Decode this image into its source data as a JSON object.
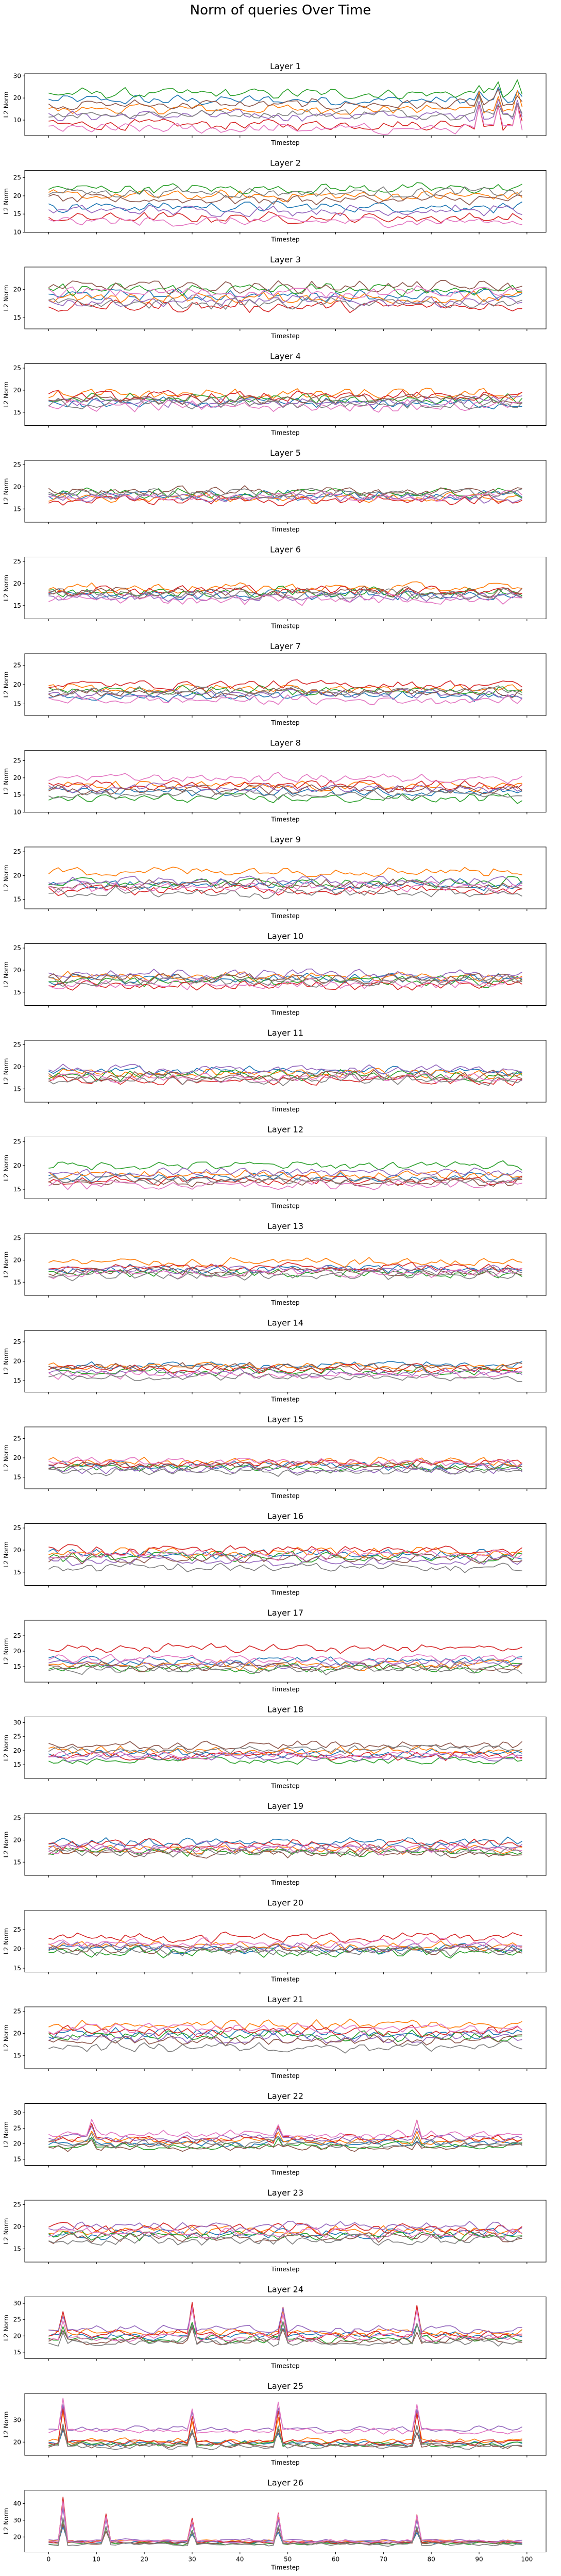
{
  "figure": {
    "title": "Norm of queries Over Time"
  },
  "chart_data": {
    "type": "line",
    "x": {
      "start": 0,
      "end": 99,
      "step": 1
    },
    "xlabel": "Timestep",
    "ylabel": "L2 Norm",
    "xlim": [
      -5,
      104
    ],
    "xticks": [
      0,
      10,
      20,
      30,
      40,
      50,
      60,
      70,
      80,
      90,
      100
    ],
    "series_per_panel": 8,
    "series_colors": [
      "#1f77b4",
      "#ff7f0e",
      "#2ca02c",
      "#d62728",
      "#9467bd",
      "#8c564b",
      "#e377c2",
      "#7f7f7f"
    ],
    "panels": [
      {
        "title": "Layer 1",
        "ylim": [
          3,
          31
        ],
        "yticks": [
          10,
          20,
          30
        ],
        "centers": [
          19,
          15,
          22,
          8,
          12,
          17,
          6,
          13
        ],
        "amp": 3.0,
        "spikes": [
          [
            90,
            10
          ],
          [
            94,
            10
          ],
          [
            98,
            10
          ]
        ]
      },
      {
        "title": "Layer 2",
        "ylim": [
          10,
          27
        ],
        "yticks": [
          10,
          15,
          20,
          25
        ],
        "centers": [
          17,
          20,
          22,
          14,
          16,
          19,
          13,
          21
        ],
        "amp": 1.8,
        "spikes": []
      },
      {
        "title": "Layer 3",
        "ylim": [
          13,
          24
        ],
        "yticks": [
          15,
          20
        ],
        "centers": [
          19,
          18.5,
          20,
          17,
          18,
          20.5,
          19.5,
          17.5
        ],
        "amp": 1.3,
        "spikes": []
      },
      {
        "title": "Layer 4",
        "ylim": [
          12,
          26
        ],
        "yticks": [
          15,
          20,
          25
        ],
        "centers": [
          17,
          19,
          18,
          18.5,
          17.5,
          18,
          16.5,
          17
        ],
        "amp": 1.6,
        "spikes": []
      },
      {
        "title": "Layer 5",
        "ylim": [
          12,
          26
        ],
        "yticks": [
          15,
          20,
          25
        ],
        "centers": [
          18,
          17.5,
          18.5,
          17,
          17.5,
          19,
          18,
          18.5
        ],
        "amp": 1.4,
        "spikes": []
      },
      {
        "title": "Layer 6",
        "ylim": [
          12,
          26
        ],
        "yticks": [
          15,
          20,
          25
        ],
        "centers": [
          17.5,
          19,
          18,
          18.5,
          17,
          18,
          16.5,
          17.5
        ],
        "amp": 1.5,
        "spikes": []
      },
      {
        "title": "Layer 7",
        "ylim": [
          12,
          28
        ],
        "yticks": [
          15,
          20,
          25
        ],
        "centers": [
          17,
          19,
          18.5,
          20,
          17.5,
          18,
          16,
          18.5
        ],
        "amp": 1.5,
        "spikes": []
      },
      {
        "title": "Layer 8",
        "ylim": [
          10,
          28
        ],
        "yticks": [
          10,
          15,
          20,
          25
        ],
        "centers": [
          16,
          17.5,
          14,
          18,
          17,
          16.5,
          20,
          15
        ],
        "amp": 1.7,
        "spikes": []
      },
      {
        "title": "Layer 9",
        "ylim": [
          13,
          26
        ],
        "yticks": [
          15,
          20,
          25
        ],
        "centers": [
          18,
          21,
          18.5,
          17,
          19,
          18,
          17.5,
          16.5
        ],
        "amp": 1.4,
        "spikes": []
      },
      {
        "title": "Layer 10",
        "ylim": [
          12,
          26
        ],
        "yticks": [
          15,
          20,
          25
        ],
        "centers": [
          18,
          18.5,
          17.5,
          16.5,
          19,
          18,
          17,
          17.5
        ],
        "amp": 1.5,
        "spikes": []
      },
      {
        "title": "Layer 11",
        "ylim": [
          12,
          26
        ],
        "yticks": [
          15,
          20,
          25
        ],
        "centers": [
          19,
          18.5,
          18,
          17,
          19.5,
          18,
          17.5,
          17
        ],
        "amp": 1.4,
        "spikes": []
      },
      {
        "title": "Layer 12",
        "ylim": [
          13,
          26
        ],
        "yticks": [
          15,
          20,
          25
        ],
        "centers": [
          17.5,
          18,
          20,
          17,
          18.5,
          16.5,
          16,
          17
        ],
        "amp": 1.2,
        "spikes": []
      },
      {
        "title": "Layer 13",
        "ylim": [
          12,
          26
        ],
        "yticks": [
          15,
          20,
          25
        ],
        "centers": [
          18,
          19.5,
          17,
          18.5,
          18,
          17.5,
          17,
          16.5
        ],
        "amp": 1.3,
        "spikes": []
      },
      {
        "title": "Layer 14",
        "ylim": [
          12,
          28
        ],
        "yticks": [
          15,
          20,
          25
        ],
        "centers": [
          19,
          18.5,
          17.5,
          18,
          17,
          18.5,
          16.5,
          16
        ],
        "amp": 1.4,
        "spikes": []
      },
      {
        "title": "Layer 15",
        "ylim": [
          12,
          28
        ],
        "yticks": [
          15,
          20,
          25
        ],
        "centers": [
          18,
          19,
          17.5,
          18.5,
          17,
          18,
          19,
          16.5
        ],
        "amp": 1.4,
        "spikes": []
      },
      {
        "title": "Layer 16",
        "ylim": [
          12,
          26
        ],
        "yticks": [
          15,
          20,
          25
        ],
        "centers": [
          19,
          19.5,
          18.5,
          20,
          17.5,
          18,
          19,
          16
        ],
        "amp": 1.4,
        "spikes": []
      },
      {
        "title": "Layer 17",
        "ylim": [
          10,
          30
        ],
        "yticks": [
          15,
          20,
          25
        ],
        "centers": [
          17,
          15.5,
          14.5,
          21,
          16,
          15,
          17.5,
          14
        ],
        "amp": 1.8,
        "spikes": []
      },
      {
        "title": "Layer 18",
        "ylim": [
          10,
          32
        ],
        "yticks": [
          15,
          20,
          25,
          30
        ],
        "centers": [
          19,
          20,
          16.5,
          18,
          17.5,
          22,
          18.5,
          20.5
        ],
        "amp": 1.8,
        "spikes": []
      },
      {
        "title": "Layer 19",
        "ylim": [
          12,
          26
        ],
        "yticks": [
          15,
          20,
          25
        ],
        "centers": [
          19.5,
          18,
          17.5,
          19,
          18.5,
          17,
          18,
          17.5
        ],
        "amp": 1.4,
        "spikes": []
      },
      {
        "title": "Layer 20",
        "ylim": [
          14,
          30
        ],
        "yticks": [
          15,
          20,
          25
        ],
        "centers": [
          20,
          21,
          19,
          23,
          20.5,
          20,
          21.5,
          19.5
        ],
        "amp": 1.6,
        "spikes": []
      },
      {
        "title": "Layer 21",
        "ylim": [
          12,
          26
        ],
        "yticks": [
          15,
          20,
          25
        ],
        "centers": [
          20,
          22,
          19.5,
          20.5,
          19,
          18.5,
          21,
          17
        ],
        "amp": 1.5,
        "spikes": []
      },
      {
        "title": "Layer 22",
        "ylim": [
          13,
          33
        ],
        "yticks": [
          15,
          20,
          25,
          30
        ],
        "centers": [
          20,
          21,
          19.5,
          21.5,
          22,
          19,
          23,
          20
        ],
        "amp": 1.6,
        "spikes": [
          [
            9,
            4
          ],
          [
            48,
            4
          ],
          [
            77,
            5
          ]
        ]
      },
      {
        "title": "Layer 23",
        "ylim": [
          12,
          26
        ],
        "yticks": [
          15,
          20,
          25
        ],
        "centers": [
          18.5,
          19,
          18,
          19.5,
          20,
          17.5,
          18.5,
          17
        ],
        "amp": 1.5,
        "spikes": []
      },
      {
        "title": "Layer 24",
        "ylim": [
          13,
          32
        ],
        "yticks": [
          15,
          20,
          25,
          30
        ],
        "centers": [
          20,
          21,
          19,
          20.5,
          22,
          18.5,
          19.5,
          18
        ],
        "amp": 1.5,
        "spikes": [
          [
            3,
            6
          ],
          [
            30,
            9
          ],
          [
            49,
            9
          ],
          [
            77,
            9
          ]
        ]
      },
      {
        "title": "Layer 25",
        "ylim": [
          14,
          42
        ],
        "yticks": [
          20,
          30
        ],
        "centers": [
          19.5,
          20.5,
          19,
          20,
          26,
          18.5,
          25,
          18
        ],
        "amp": 1.6,
        "spikes": [
          [
            3,
            16
          ],
          [
            30,
            12
          ],
          [
            48,
            14
          ],
          [
            77,
            14
          ]
        ]
      },
      {
        "title": "Layer 26",
        "ylim": [
          11,
          48
        ],
        "yticks": [
          20,
          30,
          40
        ],
        "centers": [
          17,
          17.5,
          16,
          17,
          18,
          16.5,
          17.5,
          15.5
        ],
        "amp": 1.2,
        "spikes": [
          [
            3,
            27
          ],
          [
            12,
            17
          ],
          [
            30,
            14
          ],
          [
            48,
            18
          ],
          [
            77,
            17
          ]
        ]
      }
    ]
  }
}
